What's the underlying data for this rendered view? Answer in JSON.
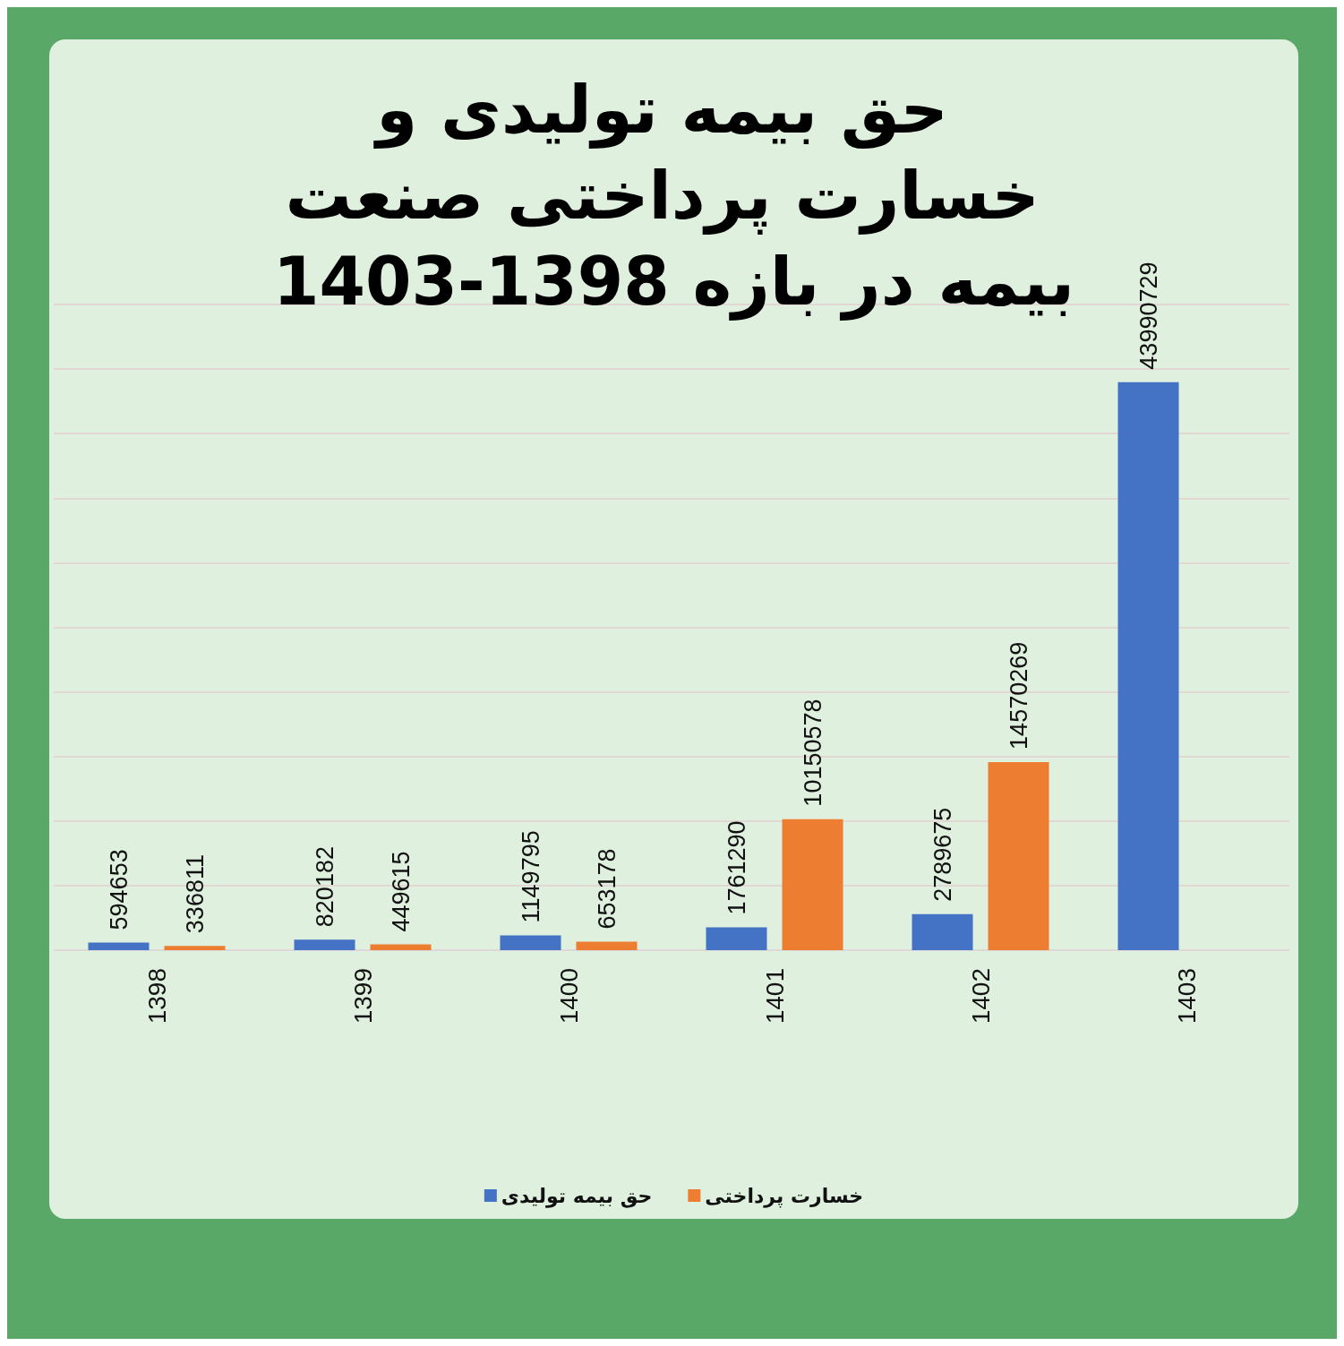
{
  "chart_data": {
    "type": "bar",
    "title": "حق بیمه تولیدی و خسارت پرداختی صنعت بیمه در بازه 1398-1403",
    "categories": [
      "1398",
      "1399",
      "1400",
      "1401",
      "1402",
      "1403"
    ],
    "series": [
      {
        "name": "حق بیمه تولیدی",
        "color": "#4472c4",
        "values": [
          594653,
          820182,
          1149795,
          1761290,
          2789675,
          43990729
        ]
      },
      {
        "name": "خسارت پرداختی",
        "color": "#ed7d31",
        "values": [
          336811,
          449615,
          653178,
          10150578,
          14570269,
          null
        ]
      }
    ],
    "ylim": [
      0,
      50000000
    ],
    "yticks": [
      {
        "value": 0,
        "label": null
      },
      {
        "value": 5000000,
        "label": null
      },
      {
        "value": 10000000,
        "label": null
      },
      {
        "value": 15000000,
        "label": null
      },
      {
        "value": 20000000,
        "label": null
      },
      {
        "value": 25000000,
        "label": null
      },
      {
        "value": 30000000,
        "label": null
      },
      {
        "value": 35000000,
        "label": null
      },
      {
        "value": 40000000,
        "label": null
      },
      {
        "value": 45000000,
        "label": null
      },
      {
        "value": 50000000,
        "label": null
      }
    ],
    "tick_labels": "x",
    "grid": "y",
    "legend": "bottom",
    "data_labels": true
  }
}
